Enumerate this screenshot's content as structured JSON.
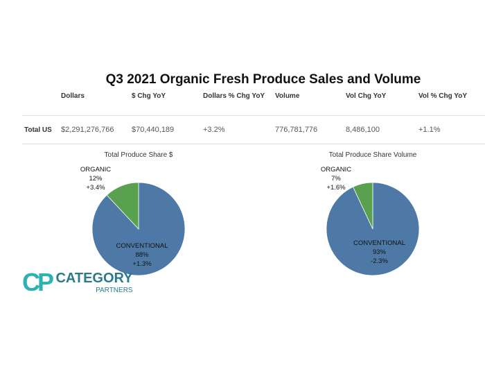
{
  "title": "Q3 2021 Organic Fresh Produce Sales and Volume",
  "table": {
    "headers": [
      "Dollars",
      "$ Chg YoY",
      "Dollars % Chg YoY",
      "Volume",
      "Vol Chg YoY",
      "Vol % Chg YoY"
    ],
    "row_label": "Total US",
    "values": [
      "$2,291,276,766",
      "$70,440,189",
      "+3.2%",
      "776,781,776",
      "8,486,100",
      "+1.1%"
    ]
  },
  "logo": {
    "mark": "CP",
    "line1": "CATEGORY",
    "line2": "PARTNERS"
  },
  "chart_data": [
    {
      "type": "pie",
      "title": "Total Produce Share $",
      "slices": [
        {
          "name": "CONVENTIONAL",
          "value": 88,
          "label": "88%",
          "chg": "+1.3%",
          "color": "#4e79a7"
        },
        {
          "name": "ORGANIC",
          "value": 12,
          "label": "12%",
          "chg": "+3.4%",
          "color": "#59a14f"
        }
      ]
    },
    {
      "type": "pie",
      "title": "Total Produce Share Volume",
      "slices": [
        {
          "name": "CONVENTIONAL",
          "value": 93,
          "label": "93%",
          "chg": "-2.3%",
          "color": "#4e79a7"
        },
        {
          "name": "ORGANIC",
          "value": 7,
          "label": "7%",
          "chg": "+1.6%",
          "color": "#59a14f"
        }
      ]
    }
  ]
}
